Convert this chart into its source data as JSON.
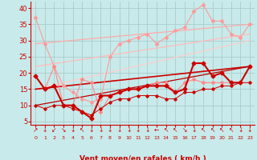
{
  "background_color": "#c8eaea",
  "grid_color": "#aacccc",
  "xlabel": "Vent moyen/en rafales ( km/h )",
  "xlabel_color": "#cc0000",
  "tick_label_color": "#cc0000",
  "axis_color": "#cc0000",
  "x_ticks": [
    0,
    1,
    2,
    3,
    4,
    5,
    6,
    7,
    8,
    9,
    10,
    11,
    12,
    13,
    14,
    15,
    16,
    17,
    18,
    19,
    20,
    21,
    22,
    23
  ],
  "ylim": [
    4,
    42
  ],
  "xlim": [
    -0.5,
    23.5
  ],
  "yticks": [
    5,
    10,
    15,
    20,
    25,
    30,
    35,
    40
  ],
  "series": [
    {
      "name": "rafales_zigzag",
      "color": "#ff9999",
      "linewidth": 0.8,
      "marker": "D",
      "markersize": 2.0,
      "data_x": [
        0,
        1,
        2,
        3,
        4,
        5,
        6,
        7,
        8,
        9,
        10,
        11,
        12,
        13,
        14,
        15,
        16,
        17,
        18,
        19,
        20,
        21,
        22,
        23
      ],
      "data_y": [
        37,
        29,
        22,
        16,
        14,
        12,
        11,
        12,
        25,
        29,
        30,
        31,
        32,
        29,
        31,
        33,
        34,
        39,
        41,
        36,
        36,
        32,
        31,
        35
      ]
    },
    {
      "name": "trend_upper1",
      "color": "#ffaaaa",
      "linewidth": 0.9,
      "marker": null,
      "data_x": [
        0,
        23
      ],
      "data_y": [
        29,
        35
      ]
    },
    {
      "name": "trend_upper2",
      "color": "#ffbbbb",
      "linewidth": 0.9,
      "marker": null,
      "data_x": [
        0,
        23
      ],
      "data_y": [
        22,
        32
      ]
    },
    {
      "name": "trend_upper3",
      "color": "#ffcccc",
      "linewidth": 0.9,
      "marker": null,
      "data_x": [
        0,
        23
      ],
      "data_y": [
        15,
        30
      ]
    },
    {
      "name": "vent_moyen_pink",
      "color": "#ff8888",
      "linewidth": 0.8,
      "marker": "D",
      "markersize": 2.0,
      "data_x": [
        0,
        1,
        2,
        3,
        4,
        5,
        6,
        7,
        8,
        9,
        10,
        11,
        12,
        13,
        14,
        15,
        16,
        17,
        18,
        19,
        20,
        21,
        22,
        23
      ],
      "data_y": [
        19,
        15,
        22,
        10,
        10,
        18,
        17,
        8,
        13,
        14,
        15,
        15,
        16,
        17,
        17,
        14,
        17,
        18,
        17,
        17,
        17,
        17,
        17,
        22
      ]
    },
    {
      "name": "dark_bold_line",
      "color": "#cc0000",
      "linewidth": 1.5,
      "marker": "D",
      "markersize": 2.5,
      "data_x": [
        0,
        1,
        2,
        3,
        4,
        5,
        6,
        7,
        8,
        9,
        10,
        11,
        12,
        13,
        14,
        15,
        16,
        17,
        18,
        19,
        20,
        21,
        22,
        23
      ],
      "data_y": [
        19,
        15,
        16,
        10,
        10,
        8,
        6,
        13,
        13,
        14,
        15,
        15,
        16,
        16,
        16,
        14,
        15,
        23,
        23,
        19,
        20,
        17,
        17,
        22
      ]
    },
    {
      "name": "trend_lower1",
      "color": "#cc0000",
      "linewidth": 1.2,
      "marker": null,
      "data_x": [
        0,
        23
      ],
      "data_y": [
        15,
        22
      ]
    },
    {
      "name": "trend_lower2",
      "color": "#bb0000",
      "linewidth": 0.9,
      "marker": null,
      "data_x": [
        0,
        23
      ],
      "data_y": [
        10,
        22
      ]
    },
    {
      "name": "small_zigzag",
      "color": "#cc0000",
      "linewidth": 0.7,
      "marker": "D",
      "markersize": 1.8,
      "data_x": [
        0,
        1,
        2,
        3,
        4,
        5,
        6,
        7,
        8,
        9,
        10,
        11,
        12,
        13,
        14,
        15,
        16,
        17,
        18,
        19,
        20,
        21,
        22,
        23
      ],
      "data_y": [
        10,
        9,
        10,
        10,
        9,
        8,
        7,
        9,
        11,
        12,
        12,
        13,
        13,
        13,
        12,
        12,
        14,
        14,
        15,
        15,
        16,
        16,
        17,
        17
      ]
    }
  ],
  "wind_symbols": [
    "↗",
    "↓",
    "↙",
    "↘",
    "↓",
    "↖",
    "↓",
    "↓",
    "↓",
    "↓",
    "↓",
    "↓",
    "↓",
    "←",
    "↖",
    "↖",
    "↘",
    "↓",
    "↖",
    "↖",
    "↖",
    "↖",
    "↓",
    "↓"
  ],
  "wind_symbol_color": "#cc0000",
  "wind_symbol_fontsize": 5.5
}
